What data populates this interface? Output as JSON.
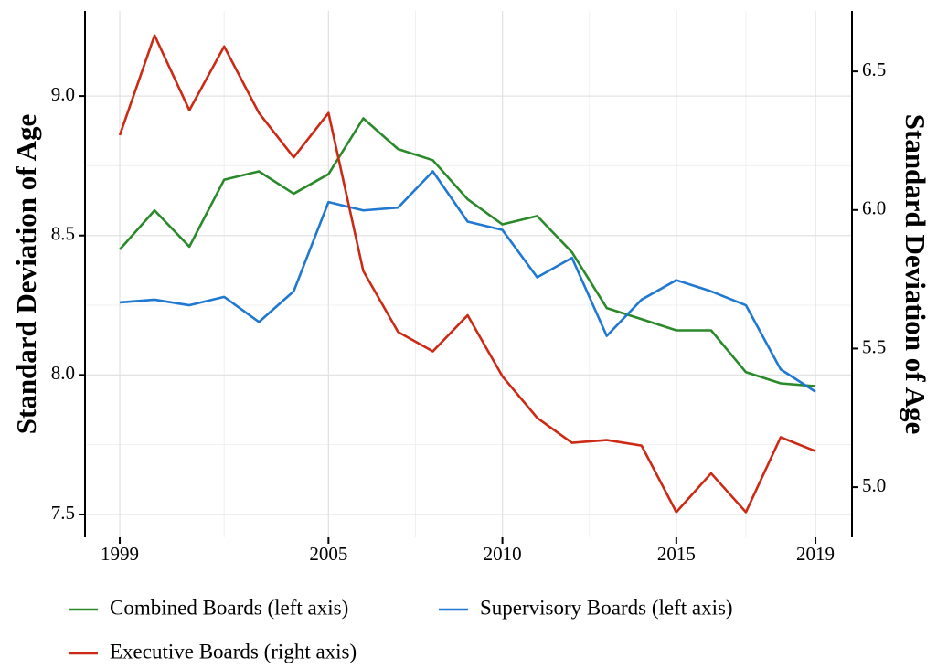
{
  "chart_data": {
    "type": "line",
    "y_label": "Standard Deviation of Age",
    "y2_label": "Standard Deviation of Age",
    "x": [
      1999,
      2000,
      2001,
      2002,
      2003,
      2004,
      2005,
      2006,
      2007,
      2008,
      2009,
      2010,
      2011,
      2012,
      2013,
      2014,
      2015,
      2016,
      2017,
      2018,
      2019
    ],
    "series": [
      {
        "name": "Combined Boards (left axis)",
        "color": "#2a8a2a",
        "values": [
          8.45,
          8.59,
          8.46,
          8.7,
          8.73,
          8.65,
          8.72,
          8.92,
          8.81,
          8.77,
          8.63,
          8.54,
          8.57,
          8.44,
          8.24,
          8.2,
          8.16,
          8.16,
          8.01,
          7.97,
          7.96
        ]
      },
      {
        "name": "Supervisory Boards (left axis)",
        "color": "#1f78d1",
        "values": [
          8.26,
          8.27,
          8.25,
          8.28,
          8.19,
          8.3,
          8.62,
          8.59,
          8.6,
          8.73,
          8.55,
          8.52,
          8.35,
          8.42,
          8.14,
          8.27,
          8.34,
          8.3,
          8.25,
          8.02,
          7.94
        ]
      },
      {
        "name": "Executive Boards (right axis)",
        "color": "#cc2a14",
        "axis": "y2",
        "values": [
          6.27,
          6.63,
          6.36,
          6.59,
          6.35,
          6.19,
          6.35,
          5.78,
          5.56,
          5.49,
          5.62,
          5.4,
          5.25,
          5.16,
          5.17,
          5.15,
          4.91,
          5.05,
          4.91,
          5.18,
          5.13
        ]
      }
    ],
    "xlim": [
      1998,
      2020.05
    ],
    "xticks": [
      1999,
      2005,
      2010,
      2015,
      2019
    ],
    "ylim": [
      7.418,
      9.305
    ],
    "yticks": [
      7.5,
      {
        "value": 8,
        "label": "8.0"
      },
      8.5,
      {
        "value": 9,
        "label": "9.0"
      }
    ],
    "y2lim": [
      4.819,
      6.718
    ],
    "y2ticks": [
      {
        "value": 5,
        "label": "5.0"
      },
      5.5,
      {
        "value": 6,
        "label": "6.0"
      },
      6.5
    ],
    "grid": true,
    "legend": "bottom"
  }
}
